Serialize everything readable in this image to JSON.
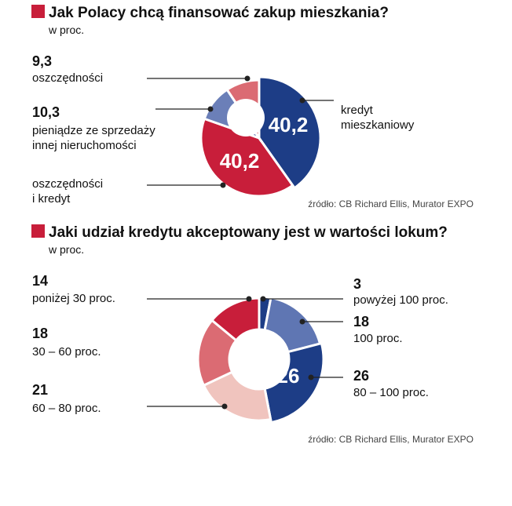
{
  "chart_data": [
    {
      "type": "pie",
      "title": "Jak Polacy chcą finansować zakup mieszkania?",
      "subtitle": "w proc.",
      "source": "źródło: CB Richard Ellis, Murator EXPO",
      "slices": [
        {
          "value": 40.2,
          "value_label": "40,2",
          "label": "kredyt mieszkaniowy",
          "label_lines": [
            "kredyt",
            "mieszkaniowy"
          ],
          "color": "#1d3d86"
        },
        {
          "value": 40.2,
          "value_label": "40,2",
          "label": "oszczędności i kredyt",
          "label_lines": [
            "oszczędności",
            "i kredyt"
          ],
          "color": "#c81e3a"
        },
        {
          "value": 10.3,
          "value_label": "10,3",
          "label": "pieniądze ze sprzedaży innej nieruchomości",
          "label_lines": [
            "pieniądze ze sprzedaży",
            "innej nieruchomości"
          ],
          "color": "#6b7fb8"
        },
        {
          "value": 9.3,
          "value_label": "9,3",
          "label": "oszczędności",
          "label_lines": [
            "oszczędności"
          ],
          "color": "#db6b73"
        }
      ]
    },
    {
      "type": "pie",
      "title": "Jaki udział kredytu akceptowany jest w wartości lokum?",
      "subtitle": "w proc.",
      "source": "źródło: CB Richard Ellis, Murator EXPO",
      "slices": [
        {
          "value": 3,
          "value_label": "3",
          "label": "powyżej 100 proc.",
          "color": "#1d3d86"
        },
        {
          "value": 18,
          "value_label": "18",
          "label": "100 proc.",
          "color": "#5f76b3"
        },
        {
          "value": 26,
          "value_label": "26",
          "label": "80 – 100 proc.",
          "color": "#1d3d86"
        },
        {
          "value": 21,
          "value_label": "21",
          "label": "60 – 80 proc.",
          "color": "#f0c4be"
        },
        {
          "value": 18,
          "value_label": "18",
          "label": "30 – 60 proc.",
          "color": "#db6b73"
        },
        {
          "value": 14,
          "value_label": "14",
          "label": "poniżej 30 proc.",
          "color": "#c81e3a"
        }
      ]
    }
  ],
  "colors": {
    "accent": "#c81e3a",
    "line": "#222222"
  }
}
